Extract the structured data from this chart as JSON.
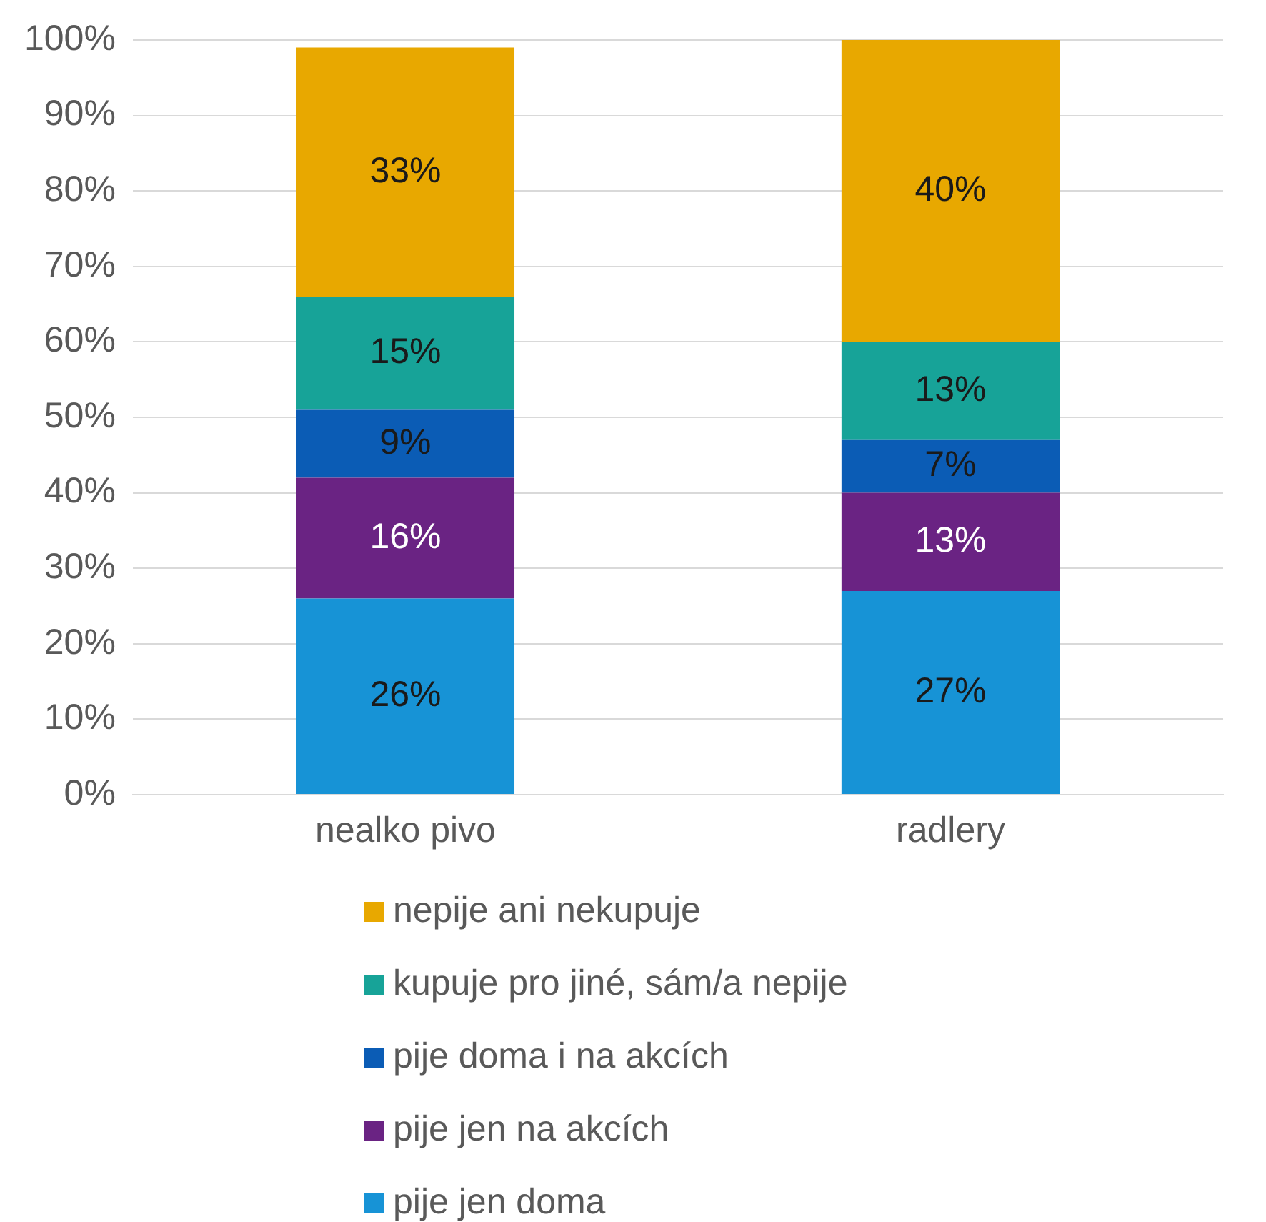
{
  "chart_data": {
    "type": "bar",
    "stacked": true,
    "categories": [
      "nealko pivo",
      "radlery"
    ],
    "series": [
      {
        "name": "pije jen doma",
        "color": "#1793d6",
        "values": [
          26,
          27
        ],
        "value_labels": [
          "26%",
          "27%"
        ]
      },
      {
        "name": "pije jen na akcích",
        "color": "#6a2383",
        "values": [
          16,
          13
        ],
        "value_labels": [
          "16%",
          "13%"
        ]
      },
      {
        "name": "pije doma i na akcích",
        "color": "#0b5cb5",
        "values": [
          9,
          7
        ],
        "value_labels": [
          "9%",
          "7%"
        ]
      },
      {
        "name": "kupuje pro jiné, sám/a nepije",
        "color": "#17a398",
        "values": [
          15,
          13
        ],
        "value_labels": [
          "15%",
          "13%"
        ]
      },
      {
        "name": "nepije ani nekupuje",
        "color": "#e8a800",
        "values": [
          33,
          40
        ],
        "value_labels": [
          "33%",
          "40%"
        ]
      }
    ],
    "ylim": [
      0,
      100
    ],
    "yticks": [
      {
        "value": 0,
        "label": "0%"
      },
      {
        "value": 10,
        "label": "10%"
      },
      {
        "value": 20,
        "label": "20%"
      },
      {
        "value": 30,
        "label": "30%"
      },
      {
        "value": 40,
        "label": "40%"
      },
      {
        "value": 50,
        "label": "50%"
      },
      {
        "value": 60,
        "label": "60%"
      },
      {
        "value": 70,
        "label": "70%"
      },
      {
        "value": 80,
        "label": "80%"
      },
      {
        "value": 90,
        "label": "90%"
      },
      {
        "value": 100,
        "label": "100%"
      }
    ],
    "grid": "y",
    "legend": "bottom"
  }
}
